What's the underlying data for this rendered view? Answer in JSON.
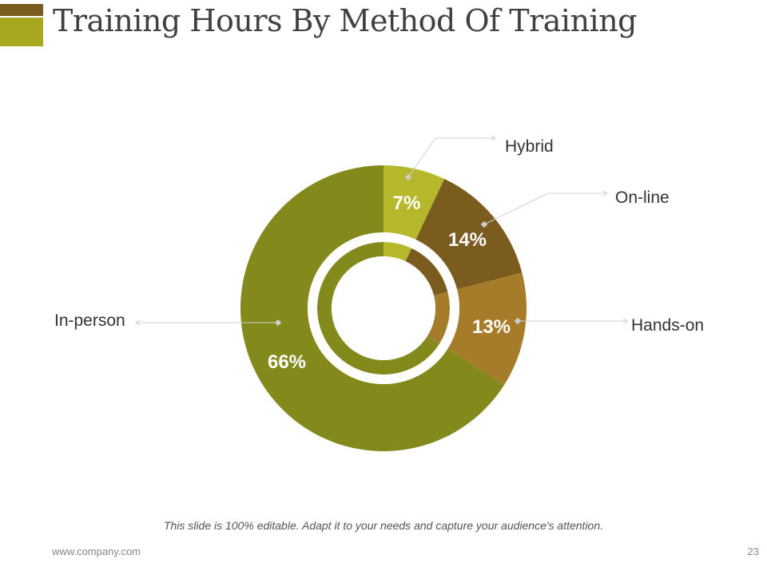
{
  "header": {
    "title": "Training Hours By Method Of Training"
  },
  "chart_data": {
    "type": "pie",
    "variant": "donut",
    "title": "Training Hours By Method Of Training",
    "categories": [
      "Hybrid",
      "On-line",
      "Hands-on",
      "In-person"
    ],
    "values": [
      7,
      14,
      13,
      66
    ],
    "labels": [
      "7%",
      "14%",
      "13%",
      "66%"
    ],
    "colors": [
      "#b5b82a",
      "#7b5c1f",
      "#a67c2a",
      "#84891c"
    ],
    "legend": "callouts"
  },
  "footer": {
    "note": "This slide is 100% editable. Adapt it to your needs and capture your audience's attention.",
    "website": "www.company.com",
    "page_number": "23"
  }
}
